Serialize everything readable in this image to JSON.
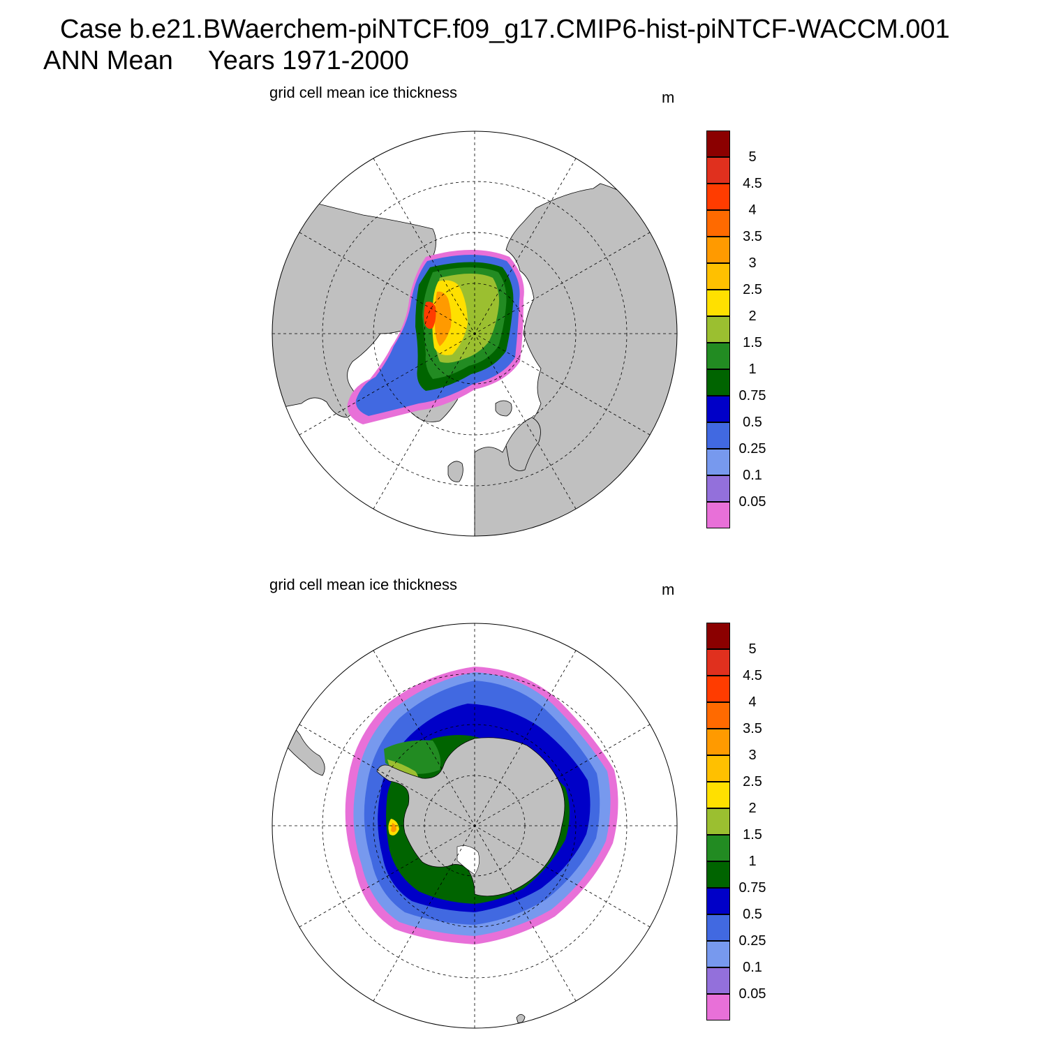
{
  "header": {
    "case_line": "Case b.e21.BWaerchem-piNTCF.f09_g17.CMIP6-hist-piNTCF-WACCM.001",
    "season": "ANN Mean",
    "years": "Years 1971-2000"
  },
  "panels": [
    {
      "hemisphere": "north",
      "title": "grid cell mean ice thickness",
      "units": "m"
    },
    {
      "hemisphere": "south",
      "title": "grid cell mean ice thickness",
      "units": "m"
    }
  ],
  "colorbar": {
    "levels": [
      "5",
      "4.5",
      "4",
      "3.5",
      "3",
      "2.5",
      "2",
      "1.5",
      "1",
      "0.75",
      "0.5",
      "0.25",
      "0.1",
      "0.05"
    ],
    "colors": [
      "#8b0000",
      "#e0301e",
      "#ff3c00",
      "#ff6a00",
      "#ff9a00",
      "#ffc000",
      "#ffe000",
      "#9bbf30",
      "#228b22",
      "#006400",
      "#0000c8",
      "#4169e1",
      "#7799ee",
      "#9370db",
      "#e870d8"
    ]
  },
  "map_colors": {
    "land": "#c0c0c0",
    "ocean": "#ffffff"
  }
}
